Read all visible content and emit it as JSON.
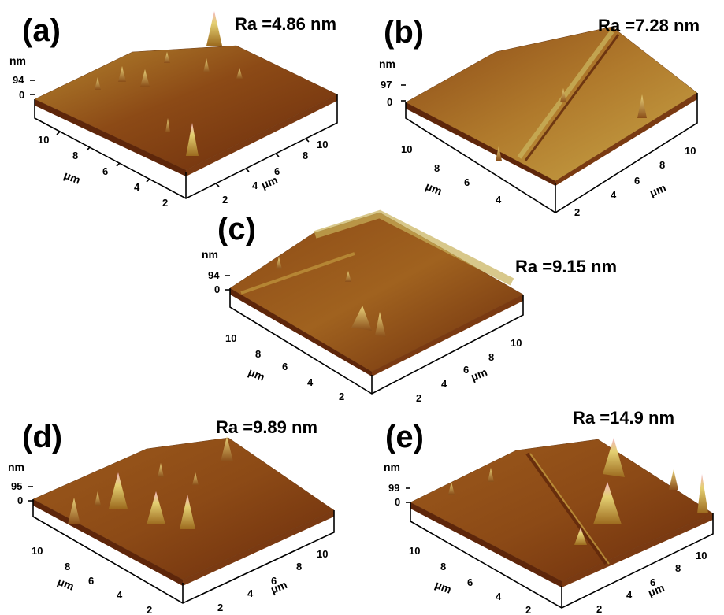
{
  "panels": [
    {
      "label": "(a)",
      "ra": "Ra =4.86 nm",
      "z_unit": "nm",
      "z_max": "94",
      "z_min": "0",
      "xy_unit": "μm",
      "left_ticks": [
        "10",
        "8",
        "6",
        "4",
        "2"
      ],
      "right_ticks": [
        "2",
        "4",
        "6",
        "8",
        "10"
      ]
    },
    {
      "label": "(b)",
      "ra": "Ra =7.28 nm",
      "z_unit": "nm",
      "z_max": "97",
      "z_min": "0",
      "xy_unit": "μm",
      "left_ticks": [
        "10",
        "8",
        "6",
        "4"
      ],
      "right_ticks": [
        "2",
        "4",
        "6",
        "8",
        "10"
      ]
    },
    {
      "label": "(c)",
      "ra": "Ra =9.15 nm",
      "z_unit": "nm",
      "z_max": "94",
      "z_min": "0",
      "xy_unit": "μm",
      "left_ticks": [
        "10",
        "8",
        "6",
        "4",
        "2"
      ],
      "right_ticks": [
        "2",
        "4",
        "6",
        "8",
        "10"
      ]
    },
    {
      "label": "(d)",
      "ra": "Ra =9.89 nm",
      "z_unit": "nm",
      "z_max": "95",
      "z_min": "0",
      "xy_unit": "μm",
      "left_ticks": [
        "10",
        "8",
        "6",
        "4",
        "2"
      ],
      "right_ticks": [
        "2",
        "4",
        "6",
        "8",
        "10"
      ]
    },
    {
      "label": "(e)",
      "ra": "Ra =14.9 nm",
      "z_unit": "nm",
      "z_max": "99",
      "z_min": "0",
      "xy_unit": "μm",
      "left_ticks": [
        "10",
        "8",
        "6",
        "4",
        "2"
      ],
      "right_ticks": [
        "2",
        "4",
        "6",
        "8",
        "10"
      ]
    }
  ],
  "colors": {
    "surface_dark": "#6b2c0c",
    "surface_mid": "#9c5a1c",
    "surface_light": "#c8a444",
    "peak_high": "#e9d27a",
    "peak_top": "#f3b8c4",
    "axis": "#000000"
  }
}
